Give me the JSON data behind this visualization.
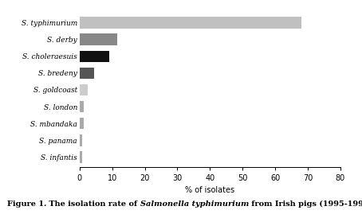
{
  "categories": [
    "S. infantis",
    "S. panama",
    "S. mbandaka",
    "S. london",
    "S. goldcoast",
    "S. bredeny",
    "S. choleraesuis",
    "S. derby",
    "S. typhimurium"
  ],
  "values": [
    0.7,
    0.7,
    1.2,
    1.2,
    2.5,
    4.5,
    9.0,
    11.5,
    68.0
  ],
  "bar_colors": [
    "#aaaaaa",
    "#aaaaaa",
    "#aaaaaa",
    "#aaaaaa",
    "#cccccc",
    "#555555",
    "#111111",
    "#888888",
    "#c0c0c0"
  ],
  "xlabel": "% of isolates",
  "xlim": [
    0,
    80
  ],
  "xticks": [
    0,
    10,
    20,
    30,
    40,
    50,
    60,
    70,
    80
  ],
  "background_color": "#ffffff",
  "bar_height": 0.7,
  "figsize": [
    4.54,
    2.69
  ],
  "dpi": 100
}
